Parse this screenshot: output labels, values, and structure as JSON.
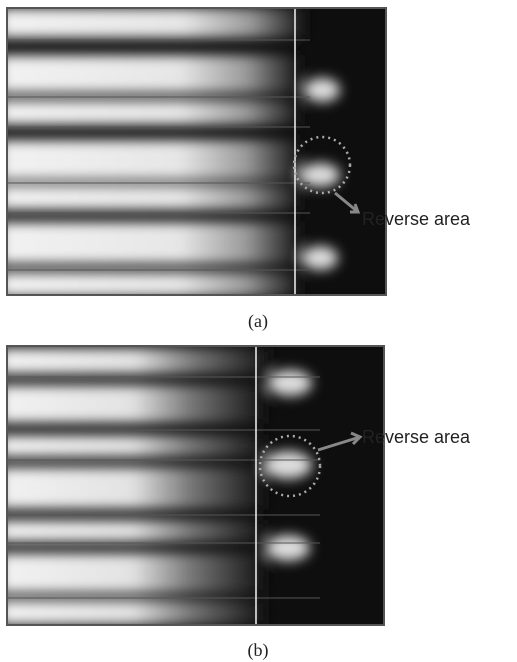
{
  "figure": {
    "panels": [
      {
        "annotation": "Reverse area",
        "caption": "(a)"
      },
      {
        "annotation": "Reverse area",
        "caption": "(b)"
      }
    ]
  }
}
